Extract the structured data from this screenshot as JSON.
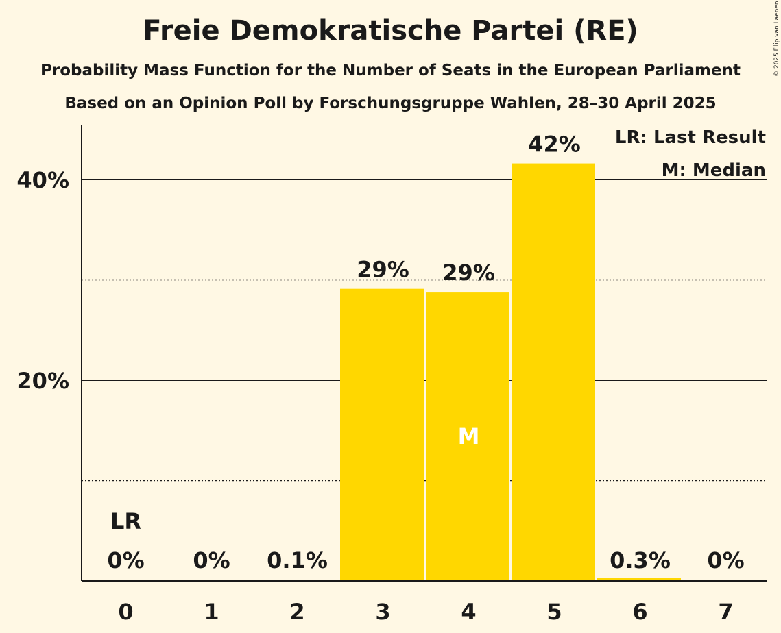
{
  "title": "Freie Demokratische Partei (RE)",
  "subtitle1": "Probability Mass Function for the Number of Seats in the European Parliament",
  "subtitle2": "Based on an Opinion Poll by Forschungsgruppe Wahlen, 28–30 April 2025",
  "copyright": "© 2025 Filip van Laenen",
  "colors": {
    "bar": "#ffd700",
    "background": "#fff8e4",
    "text": "#1a1a1a"
  },
  "chart_data": {
    "type": "bar",
    "categories": [
      "0",
      "1",
      "2",
      "3",
      "4",
      "5",
      "6",
      "7"
    ],
    "values": [
      0,
      0,
      0.1,
      29.1,
      28.8,
      41.6,
      0.3,
      0
    ],
    "value_labels": [
      "0%",
      "0%",
      "0.1%",
      "29%",
      "29%",
      "42%",
      "0.3%",
      "0%"
    ],
    "ylim": [
      0,
      45
    ],
    "y_ticks": [
      {
        "value": 20,
        "label": "20%",
        "style": "solid"
      },
      {
        "value": 40,
        "label": "40%",
        "style": "solid"
      }
    ],
    "y_minor_ticks": [
      10,
      30
    ],
    "markers": [
      {
        "category": "0",
        "label": "LR"
      },
      {
        "category": "4",
        "label": "M"
      }
    ],
    "legend": [
      "LR: Last Result",
      "M: Median"
    ],
    "legend_position": "top-right"
  }
}
